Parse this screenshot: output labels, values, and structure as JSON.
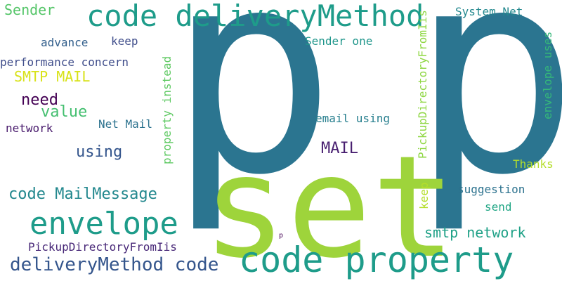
{
  "words": [
    {
      "text": "p",
      "color": "#2b7590"
    },
    {
      "text": "p",
      "color": "#2b7590"
    },
    {
      "text": "set",
      "color": "#9ed43b"
    },
    {
      "text": "code deliveryMethod",
      "color": "#1e9c8a"
    },
    {
      "text": "code property",
      "color": "#1e9c8a"
    },
    {
      "text": "envelope",
      "color": "#1e9c8a"
    },
    {
      "text": "deliveryMethod code",
      "color": "#34558c"
    },
    {
      "text": "code MailMessage",
      "color": "#23888e"
    },
    {
      "text": "Sender",
      "color": "#54c568"
    },
    {
      "text": "advance",
      "color": "#34608d"
    },
    {
      "text": "keep",
      "color": "#3e4c8a"
    },
    {
      "text": "performance concern",
      "color": "#3e4c8a"
    },
    {
      "text": "SMTP MAIL",
      "color": "#d8e219"
    },
    {
      "text": "need",
      "color": "#440154"
    },
    {
      "text": "value",
      "color": "#44bf70"
    },
    {
      "text": "network",
      "color": "#481a6c"
    },
    {
      "text": "using",
      "color": "#34558c"
    },
    {
      "text": "Net Mail",
      "color": "#2c728e"
    },
    {
      "text": "MAIL",
      "color": "#481f70"
    },
    {
      "text": "email using",
      "color": "#277f8e"
    },
    {
      "text": "Sender one",
      "color": "#1f968b"
    },
    {
      "text": "System Net",
      "color": "#23888e"
    },
    {
      "text": "Thanks",
      "color": "#b5de2b"
    },
    {
      "text": "suggestion",
      "color": "#2c728e"
    },
    {
      "text": "send",
      "color": "#21a685"
    },
    {
      "text": "smtp network",
      "color": "#1fa187"
    },
    {
      "text": "PickupDirectoryFromIis",
      "color": "#482878"
    },
    {
      "text": "p",
      "color": "#440154"
    },
    {
      "text": "property instead",
      "color": "#5ec962"
    },
    {
      "text": "PickupDirectoryFromIis",
      "color": "#8fd744"
    },
    {
      "text": "keep",
      "color": "#b5de2b"
    },
    {
      "text": "envelope uses",
      "color": "#35b779"
    }
  ]
}
